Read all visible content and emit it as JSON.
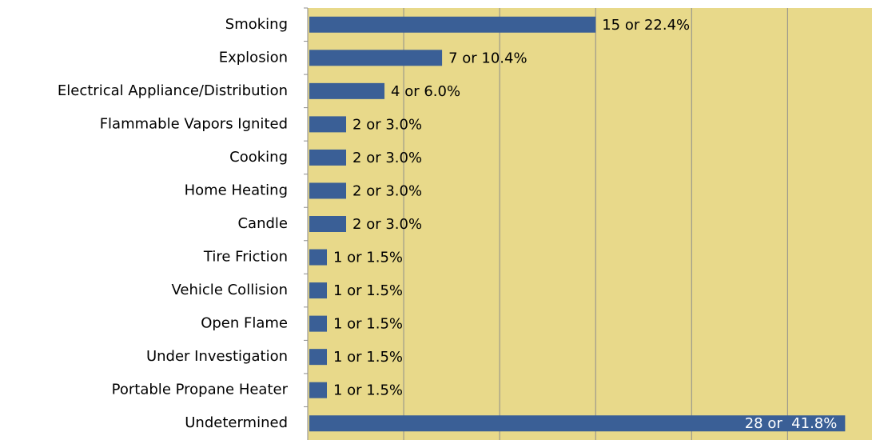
{
  "chart_data": {
    "type": "bar",
    "orientation": "horizontal",
    "categories": [
      "Smoking",
      "Explosion",
      "Electrical Appliance/Distribution",
      "Flammable Vapors Ignited",
      "Cooking",
      "Home Heating",
      "Candle",
      "Tire Friction",
      "Vehicle Collision",
      "Open Flame",
      "Under Investigation",
      "Portable Propane Heater",
      "Undetermined"
    ],
    "values": [
      15,
      7,
      4,
      2,
      2,
      2,
      2,
      1,
      1,
      1,
      1,
      1,
      28
    ],
    "value_labels": [
      "15 or 22.4%",
      "7 or 10.4%",
      "4 or 6.0%",
      "2 or 3.0%",
      "2 or 3.0%",
      "2 or 3.0%",
      "2 or 3.0%",
      "1 or 1.5%",
      "1 or 1.5%",
      "1 or 1.5%",
      "1 or 1.5%",
      "1 or 1.5%",
      "28 or  41.8%"
    ],
    "color": "#3a5f96",
    "background": "#e8d98a",
    "xlim": [
      0,
      29.4
    ],
    "xticks": [
      0,
      5,
      10,
      15,
      20,
      25
    ],
    "grid": true
  }
}
